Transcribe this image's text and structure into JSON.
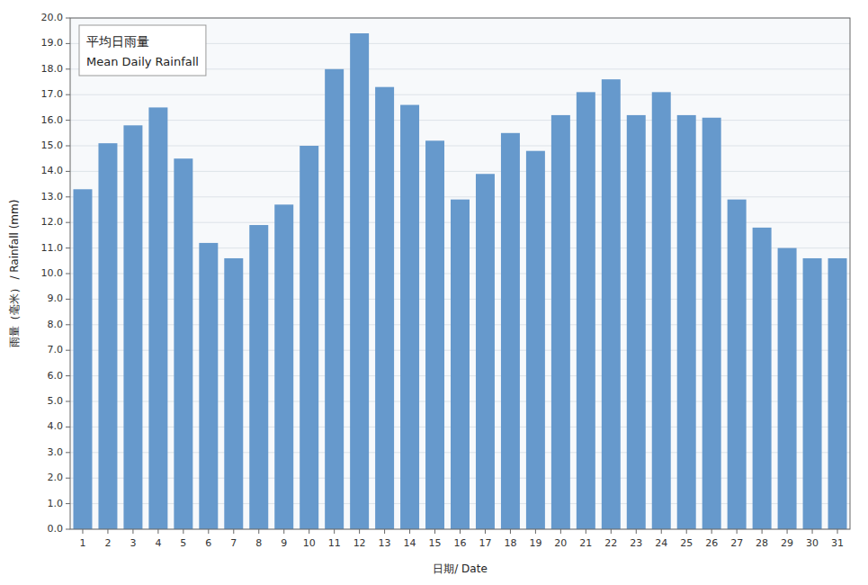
{
  "chart_data": {
    "type": "bar",
    "xlabel": "日期/ Date",
    "ylabel": "雨量（毫米） / Rainfall (mm)",
    "annotations": [
      "平均日雨量",
      "Mean Daily Rainfall"
    ],
    "categories": [
      1,
      2,
      3,
      4,
      5,
      6,
      7,
      8,
      9,
      10,
      11,
      12,
      13,
      14,
      15,
      16,
      17,
      18,
      19,
      20,
      21,
      22,
      23,
      24,
      25,
      26,
      27,
      28,
      29,
      30,
      31
    ],
    "values": [
      13.3,
      15.1,
      15.8,
      16.5,
      14.5,
      11.2,
      10.6,
      11.9,
      12.7,
      15.0,
      18.0,
      19.4,
      17.3,
      16.6,
      15.2,
      12.9,
      13.9,
      15.5,
      14.8,
      16.2,
      17.1,
      17.6,
      16.2,
      17.1,
      16.2,
      16.1,
      12.9,
      11.8,
      11.0,
      10.6,
      10.6
    ],
    "color": "#6699CC",
    "ylim": [
      0.0,
      20.0
    ],
    "yticks": [
      {
        "value": 0,
        "label": "0.0"
      },
      {
        "value": 1,
        "label": "1.0"
      },
      {
        "value": 2,
        "label": "2.0"
      },
      {
        "value": 3,
        "label": "3.0"
      },
      {
        "value": 4,
        "label": "4.0"
      },
      {
        "value": 5,
        "label": "5.0"
      },
      {
        "value": 6,
        "label": "6.0"
      },
      {
        "value": 7,
        "label": "7.0"
      },
      {
        "value": 8,
        "label": "8.0"
      },
      {
        "value": 9,
        "label": "9.0"
      },
      {
        "value": 10,
        "label": "10.0"
      },
      {
        "value": 11,
        "label": "11.0"
      },
      {
        "value": 12,
        "label": "12.0"
      },
      {
        "value": 13,
        "label": "13.0"
      },
      {
        "value": 14,
        "label": "14.0"
      },
      {
        "value": 15,
        "label": "15.0"
      },
      {
        "value": 16,
        "label": "16.0"
      },
      {
        "value": 17,
        "label": "17.0"
      },
      {
        "value": 18,
        "label": "18.0"
      },
      {
        "value": 19,
        "label": "19.0"
      },
      {
        "value": 20,
        "label": "20.0"
      }
    ],
    "grid": true
  }
}
